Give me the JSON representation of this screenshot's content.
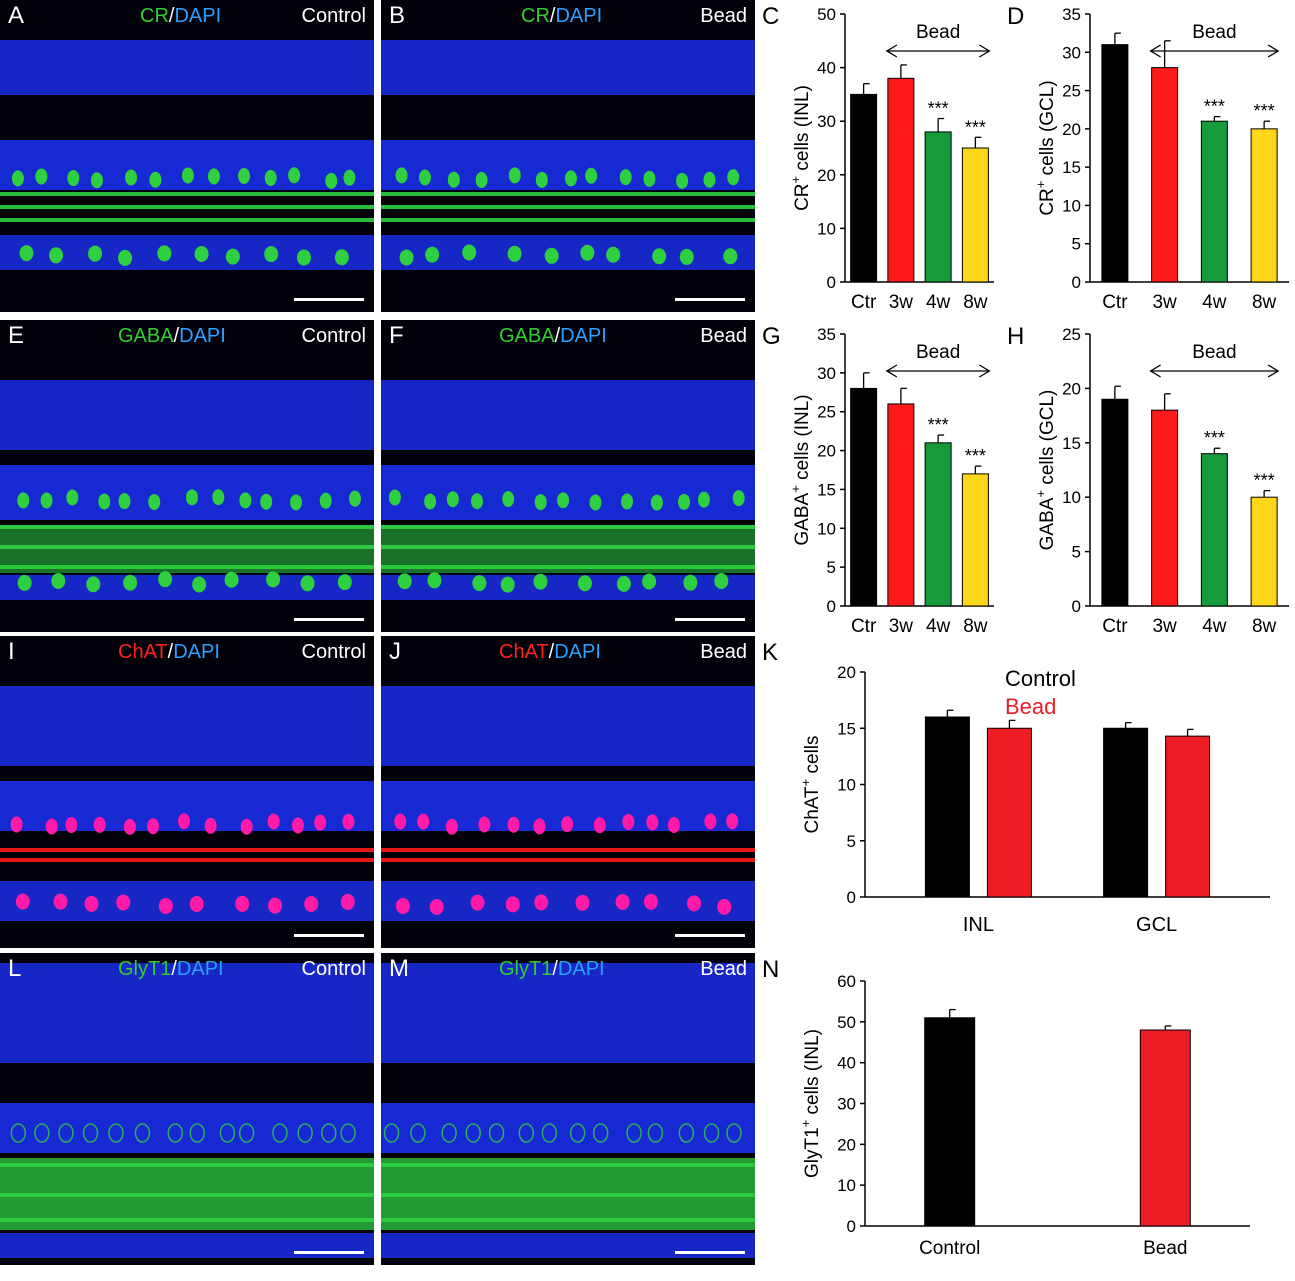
{
  "colors": {
    "dapi": "#1a2ee8",
    "green": "#2ed040",
    "red": "#ff1a1a",
    "magenta": "#ff1aa8",
    "stain_green": "#33cc33",
    "stain_red": "#ff2020",
    "stain_blue": "#2aa0ff",
    "bar_ctr": "#000000",
    "bar_3w": "#ff1a1a",
    "bar_4w": "#169a3c",
    "bar_8w": "#ffd71a",
    "bar_bead": "#ee1c25"
  },
  "micrographs": [
    {
      "id": "A",
      "letter": "A",
      "marker": "CR",
      "sep": "/",
      "dapi": "DAPI",
      "marker_color": "green",
      "condition": "Control",
      "pattern": "cr"
    },
    {
      "id": "B",
      "letter": "B",
      "marker": "CR",
      "sep": "/",
      "dapi": "DAPI",
      "marker_color": "green",
      "condition": "Bead",
      "pattern": "cr"
    },
    {
      "id": "E",
      "letter": "E",
      "marker": "GABA",
      "sep": "/",
      "dapi": "DAPI",
      "marker_color": "green",
      "condition": "Control",
      "pattern": "gaba"
    },
    {
      "id": "F",
      "letter": "F",
      "marker": "GABA",
      "sep": "/",
      "dapi": "DAPI",
      "marker_color": "green",
      "condition": "Bead",
      "pattern": "gaba"
    },
    {
      "id": "I",
      "letter": "I",
      "marker": "ChAT",
      "sep": "/",
      "dapi": "DAPI",
      "marker_color": "red",
      "condition": "Control",
      "pattern": "chat"
    },
    {
      "id": "J",
      "letter": "J",
      "marker": "ChAT",
      "sep": "/",
      "dapi": "DAPI",
      "marker_color": "red",
      "condition": "Bead",
      "pattern": "chat"
    },
    {
      "id": "L",
      "letter": "L",
      "marker": "GlyT1",
      "sep": "/",
      "dapi": "DAPI",
      "marker_color": "green",
      "condition": "Control",
      "pattern": "glyt"
    },
    {
      "id": "M",
      "letter": "M",
      "marker": "GlyT1",
      "sep": "/",
      "dapi": "DAPI",
      "marker_color": "green",
      "condition": "Bead",
      "pattern": "glyt"
    }
  ],
  "chart_data": [
    {
      "id": "C",
      "letter": "C",
      "type": "bar",
      "categories": [
        "Ctr",
        "3w",
        "4w",
        "8w"
      ],
      "values": [
        35,
        38,
        28,
        25
      ],
      "errors": [
        2,
        2.5,
        2.5,
        2
      ],
      "bar_colors": [
        "bar_ctr",
        "bar_3w",
        "bar_4w",
        "bar_8w"
      ],
      "significance": [
        "",
        "",
        "***",
        "***"
      ],
      "ylabel_main": "CR",
      "ylabel_sup": "+",
      "ylabel_rest": " cells (INL)",
      "ylim": [
        0,
        50
      ],
      "yticks": [
        0,
        10,
        20,
        30,
        40,
        50
      ],
      "bracket_label": "Bead"
    },
    {
      "id": "D",
      "letter": "D",
      "type": "bar",
      "categories": [
        "Ctr",
        "3w",
        "4w",
        "8w"
      ],
      "values": [
        31,
        28,
        21,
        20
      ],
      "errors": [
        1.5,
        3.5,
        0.6,
        1
      ],
      "bar_colors": [
        "bar_ctr",
        "bar_3w",
        "bar_4w",
        "bar_8w"
      ],
      "significance": [
        "",
        "",
        "***",
        "***"
      ],
      "ylabel_main": "CR",
      "ylabel_sup": "+",
      "ylabel_rest": " cells (GCL)",
      "ylim": [
        0,
        35
      ],
      "yticks": [
        0,
        5,
        10,
        15,
        20,
        25,
        30,
        35
      ],
      "bracket_label": "Bead"
    },
    {
      "id": "G",
      "letter": "G",
      "type": "bar",
      "categories": [
        "Ctr",
        "3w",
        "4w",
        "8w"
      ],
      "values": [
        28,
        26,
        21,
        17
      ],
      "errors": [
        2,
        2,
        1,
        1
      ],
      "bar_colors": [
        "bar_ctr",
        "bar_3w",
        "bar_4w",
        "bar_8w"
      ],
      "significance": [
        "",
        "",
        "***",
        "***"
      ],
      "ylabel_main": "GABA",
      "ylabel_sup": "+",
      "ylabel_rest": " cells (INL)",
      "ylim": [
        0,
        35
      ],
      "yticks": [
        0,
        5,
        10,
        15,
        20,
        25,
        30,
        35
      ],
      "bracket_label": "Bead"
    },
    {
      "id": "H",
      "letter": "H",
      "type": "bar",
      "categories": [
        "Ctr",
        "3w",
        "4w",
        "8w"
      ],
      "values": [
        19,
        18,
        14,
        10
      ],
      "errors": [
        1.2,
        1.5,
        0.5,
        0.6
      ],
      "bar_colors": [
        "bar_ctr",
        "bar_3w",
        "bar_4w",
        "bar_8w"
      ],
      "significance": [
        "",
        "",
        "***",
        "***"
      ],
      "ylabel_main": "GABA",
      "ylabel_sup": "+",
      "ylabel_rest": " cells (GCL)",
      "ylim": [
        0,
        25
      ],
      "yticks": [
        0,
        5,
        10,
        15,
        20,
        25
      ],
      "bracket_label": "Bead"
    },
    {
      "id": "K",
      "letter": "K",
      "type": "bar",
      "categories": [
        "INL",
        "GCL"
      ],
      "series": [
        {
          "name": "Control",
          "values": [
            16,
            15
          ],
          "errors": [
            0.6,
            0.5
          ],
          "color": "bar_ctr"
        },
        {
          "name": "Bead",
          "values": [
            15,
            14.3
          ],
          "errors": [
            0.7,
            0.6
          ],
          "color": "bar_bead"
        }
      ],
      "ylabel_main": "ChAT",
      "ylabel_sup": "+",
      "ylabel_rest": " cells",
      "ylim": [
        0,
        20
      ],
      "yticks": [
        0,
        5,
        10,
        15,
        20
      ]
    },
    {
      "id": "N",
      "letter": "N",
      "type": "bar",
      "categories": [
        "Control",
        "Bead"
      ],
      "values": [
        51,
        48
      ],
      "errors": [
        2,
        1
      ],
      "bar_colors": [
        "bar_ctr",
        "bar_bead"
      ],
      "ylabel_main": "GlyT1",
      "ylabel_sup": "+",
      "ylabel_rest": " cells (INL)",
      "ylim": [
        0,
        60
      ],
      "yticks": [
        0,
        10,
        20,
        30,
        40,
        50,
        60
      ]
    }
  ]
}
